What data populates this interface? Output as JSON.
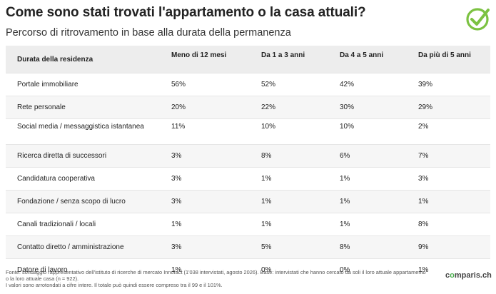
{
  "title": "Come sono stati trovati l'appartamento o la casa attuali?",
  "subtitle": "Percorso di ritrovamento in base alla durata della permanenza",
  "logo": {
    "icon": "check-circle-icon",
    "color": "#7cc242"
  },
  "table": {
    "headers": [
      "Durata della residenza",
      "Meno di 12 mesi",
      "Da 1 a 3 anni",
      "Da 4 a 5 anni",
      "Da più di 5 anni"
    ],
    "rows": [
      [
        "Portale immobiliare",
        "56%",
        "52%",
        "42%",
        "39%"
      ],
      [
        "Rete personale",
        "20%",
        "22%",
        "30%",
        "29%"
      ],
      [
        "Social media / messaggistica istantanea",
        "11%",
        "10%",
        "10%",
        "2%"
      ],
      [
        "Ricerca diretta di successori",
        "3%",
        "8%",
        "6%",
        "7%"
      ],
      [
        "Candidatura cooperativa",
        "3%",
        "1%",
        "1%",
        "3%"
      ],
      [
        "Fondazione / senza scopo di lucro",
        "3%",
        "1%",
        "1%",
        "1%"
      ],
      [
        "Canali tradizionali / locali",
        "1%",
        "1%",
        "1%",
        "8%"
      ],
      [
        "Contatto diretto / amministrazione",
        "3%",
        "5%",
        "8%",
        "9%"
      ],
      [
        "Datore di lavoro",
        "1%",
        "0%",
        "0%",
        "1%"
      ]
    ]
  },
  "footer": {
    "source": "Fonte: sondaggio rappresentativo dell'istituto di ricerche di mercato Innofact (1'038 intervistati, agosto 2026). Base: intervistati che hanno cercato da soli il loro attuale appartamento o la loro attuale casa (n = 922).",
    "note": "I valori sono arrotondati a cifre intere. Il totale può quindi essere compreso tra il 99 e il 101%."
  },
  "brand": {
    "prefix": "c",
    "accent": "o",
    "suffix": "mparis.ch"
  }
}
